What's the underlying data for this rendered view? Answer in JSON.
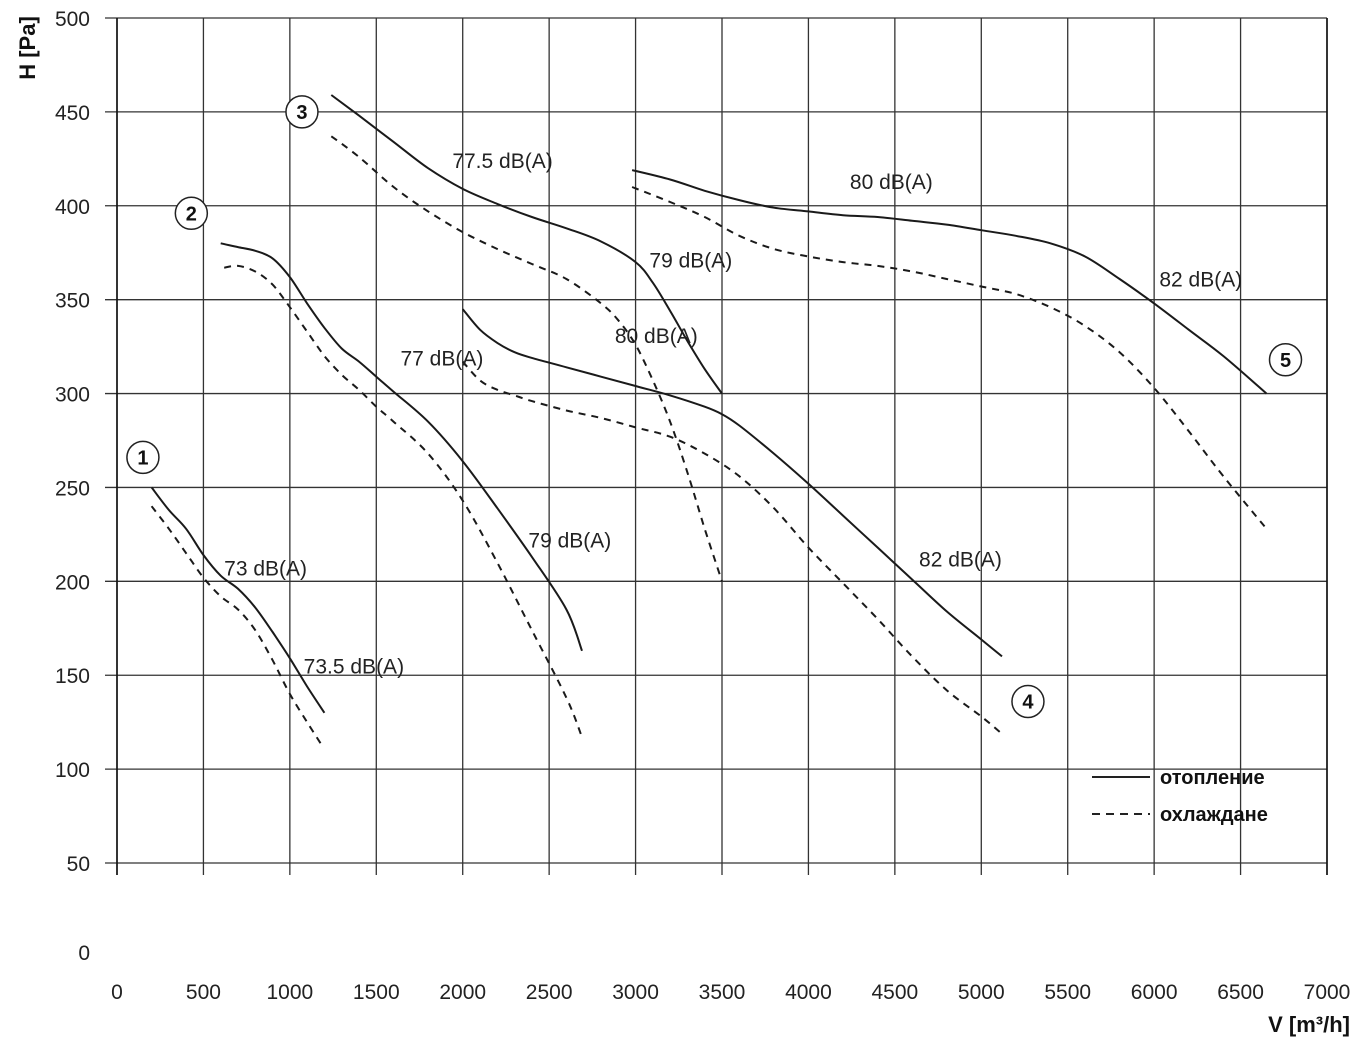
{
  "chart_data": {
    "type": "line",
    "xlabel": "V [m³/h]",
    "ylabel": "H [Pa]",
    "xlim": [
      0,
      7000
    ],
    "ylim": [
      50,
      500
    ],
    "x_ticks": [
      0,
      500,
      1000,
      1500,
      2000,
      2500,
      3000,
      3500,
      4000,
      4500,
      5000,
      5500,
      6000,
      6500,
      7000
    ],
    "y_tick_labels": [
      {
        "value": 50,
        "label": "50"
      },
      {
        "value": 100,
        "label": "100"
      },
      {
        "value": 150,
        "label": "150"
      },
      {
        "value": 200,
        "label": "200"
      },
      {
        "value": 250,
        "label": "250"
      },
      {
        "value": 300,
        "label": "300"
      },
      {
        "value": 350,
        "label": "350"
      },
      {
        "value": 400,
        "label": "400"
      },
      {
        "value": 450,
        "label": "450"
      },
      {
        "value": 500,
        "label": "500"
      }
    ],
    "y_extra_label": "0",
    "grid": true,
    "legend_position": "bottom-right",
    "legend": [
      {
        "label": "отопление",
        "style": "solid"
      },
      {
        "label": "охлаждане",
        "style": "dashed"
      }
    ],
    "series": [
      {
        "style": "solid",
        "x": [
          200,
          300,
          400,
          500,
          600,
          700,
          800,
          900,
          1000,
          1100,
          1200
        ],
        "y": [
          250,
          238,
          228,
          214,
          203,
          196,
          186,
          173,
          159,
          144,
          130
        ]
      },
      {
        "style": "dashed",
        "x": [
          200,
          300,
          400,
          500,
          600,
          700,
          800,
          900,
          1000,
          1100,
          1190
        ],
        "y": [
          240,
          228,
          215,
          202,
          192,
          185,
          174,
          158,
          140,
          125,
          112
        ]
      },
      {
        "style": "solid",
        "x": [
          600,
          700,
          800,
          900,
          1000,
          1100,
          1200,
          1300,
          1400,
          1500,
          1600,
          1800,
          2000,
          2200,
          2400,
          2600,
          2690
        ],
        "y": [
          380,
          378,
          376,
          372,
          362,
          348,
          335,
          324,
          317,
          309,
          301,
          285,
          264,
          239,
          213,
          185,
          163
        ]
      },
      {
        "style": "dashed",
        "x": [
          620,
          700,
          800,
          900,
          1000,
          1100,
          1200,
          1300,
          1400,
          1500,
          1600,
          1800,
          2000,
          2200,
          2400,
          2600,
          2690
        ],
        "y": [
          367,
          368,
          365,
          358,
          346,
          333,
          320,
          310,
          302,
          293,
          285,
          268,
          243,
          210,
          174,
          138,
          117
        ]
      },
      {
        "style": "solid",
        "x": [
          1240,
          1400,
          1600,
          1800,
          2000,
          2200,
          2400,
          2600,
          2800,
          3000,
          3100,
          3200,
          3300,
          3400,
          3500
        ],
        "y": [
          459,
          448,
          434,
          420,
          409,
          401,
          394,
          388,
          381,
          370,
          359,
          344,
          328,
          313,
          300
        ]
      },
      {
        "style": "dashed",
        "x": [
          1240,
          1400,
          1600,
          1800,
          2000,
          2200,
          2400,
          2600,
          2800,
          2900,
          3000,
          3100,
          3200,
          3300,
          3400,
          3500
        ],
        "y": [
          437,
          426,
          410,
          397,
          386,
          377,
          369,
          361,
          348,
          339,
          326,
          307,
          285,
          258,
          228,
          200
        ]
      },
      {
        "style": "solid",
        "x": [
          2000,
          2100,
          2200,
          2300,
          2400,
          2600,
          2800,
          3000,
          3200,
          3400,
          3500,
          3600,
          3800,
          4000,
          4200,
          4400,
          4600,
          4800,
          5000,
          5120
        ],
        "y": [
          345,
          334,
          327,
          322,
          319,
          314,
          309,
          304,
          299,
          293,
          289,
          283,
          268,
          252,
          235,
          218,
          201,
          184,
          169,
          160
        ]
      },
      {
        "style": "dashed",
        "x": [
          2000,
          2100,
          2200,
          2300,
          2400,
          2600,
          2800,
          3000,
          3200,
          3400,
          3600,
          3800,
          4000,
          4200,
          4400,
          4600,
          4800,
          5000,
          5130
        ],
        "y": [
          317,
          307,
          302,
          299,
          296,
          291,
          287,
          282,
          277,
          268,
          256,
          239,
          218,
          199,
          180,
          160,
          142,
          128,
          118
        ]
      },
      {
        "style": "solid",
        "x": [
          2980,
          3200,
          3400,
          3600,
          3800,
          4000,
          4200,
          4400,
          4600,
          4800,
          5000,
          5200,
          5400,
          5600,
          5800,
          6000,
          6200,
          6400,
          6650
        ],
        "y": [
          419,
          414,
          408,
          403,
          399,
          397,
          395,
          394,
          392,
          390,
          387,
          384,
          380,
          373,
          361,
          348,
          334,
          320,
          300
        ]
      },
      {
        "style": "dashed",
        "x": [
          2980,
          3200,
          3400,
          3600,
          3800,
          4000,
          4200,
          4400,
          4600,
          4800,
          5000,
          5200,
          5400,
          5600,
          5800,
          6000,
          6200,
          6400,
          6650
        ],
        "y": [
          410,
          402,
          394,
          384,
          377,
          373,
          370,
          368,
          365,
          361,
          357,
          353,
          346,
          336,
          322,
          303,
          280,
          256,
          228
        ]
      }
    ],
    "curve_labels": [
      {
        "text": "73 dB(A)",
        "x": 620,
        "y": 203
      },
      {
        "text": "73.5 dB(A)",
        "x": 1080,
        "y": 151
      },
      {
        "text": "77 dB(A)",
        "x": 1640,
        "y": 315
      },
      {
        "text": "79 dB(A)",
        "x": 2380,
        "y": 218
      },
      {
        "text": "77.5 dB(A)",
        "x": 1940,
        "y": 420
      },
      {
        "text": "79 dB(A)",
        "x": 3080,
        "y": 367
      },
      {
        "text": "80 dB(A)",
        "x": 2880,
        "y": 327
      },
      {
        "text": "82 dB(A)",
        "x": 4640,
        "y": 208
      },
      {
        "text": "80 dB(A)",
        "x": 4240,
        "y": 409
      },
      {
        "text": "82 dB(A)",
        "x": 6030,
        "y": 357
      }
    ],
    "markers": [
      {
        "text": "1",
        "x": 150,
        "y": 266
      },
      {
        "text": "2",
        "x": 430,
        "y": 396
      },
      {
        "text": "3",
        "x": 1070,
        "y": 450
      },
      {
        "text": "4",
        "x": 5270,
        "y": 136
      },
      {
        "text": "5",
        "x": 6760,
        "y": 318
      }
    ]
  }
}
